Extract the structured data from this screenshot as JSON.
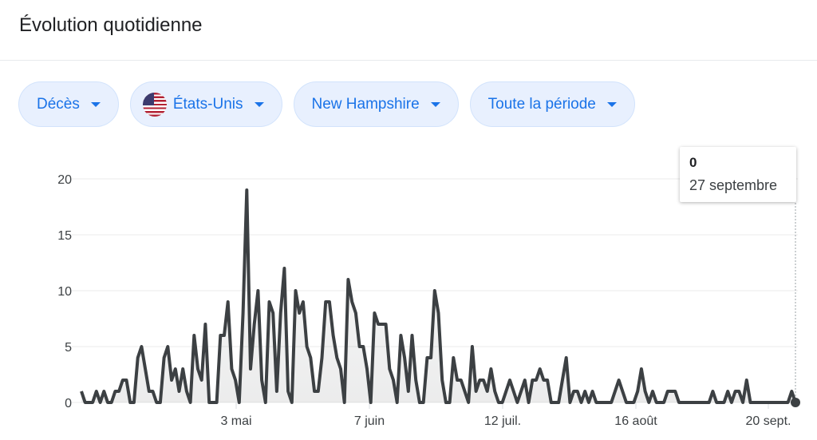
{
  "header": {
    "title": "Évolution quotidienne"
  },
  "filters": [
    {
      "label": "Décès",
      "icon": "caret-down-icon"
    },
    {
      "label": "États-Unis",
      "icon": "us-flag-icon"
    },
    {
      "label": "New Hampshire",
      "icon": "caret-down-icon"
    },
    {
      "label": "Toute la période",
      "icon": "caret-down-icon"
    }
  ],
  "tooltip": {
    "value": "0",
    "date": "27 septembre"
  },
  "chart_data": {
    "type": "line",
    "title": "",
    "xlabel": "",
    "ylabel": "",
    "ylim": [
      0,
      20
    ],
    "yticks": [
      0,
      5,
      10,
      15,
      20
    ],
    "xticks": [
      "3 mai",
      "7 juin",
      "12 juil.",
      "16 août",
      "20 sept."
    ],
    "grid": true,
    "line_color": "#3c4043",
    "values": [
      1,
      0,
      0,
      0,
      1,
      0,
      1,
      0,
      0,
      1,
      1,
      2,
      2,
      0,
      0,
      4,
      5,
      3,
      1,
      1,
      0,
      0,
      4,
      5,
      2,
      3,
      1,
      3,
      1,
      0,
      6,
      3,
      2,
      7,
      0,
      0,
      0,
      6,
      6,
      9,
      3,
      2,
      0,
      8,
      19,
      3,
      7,
      10,
      2,
      0,
      9,
      8,
      1,
      8,
      12,
      1,
      0,
      10,
      8,
      9,
      5,
      4,
      1,
      1,
      4,
      9,
      9,
      6,
      4,
      3,
      0,
      11,
      9,
      8,
      5,
      5,
      3,
      0,
      8,
      7,
      7,
      7,
      3,
      2,
      0,
      6,
      4,
      1,
      6,
      2,
      0,
      0,
      4,
      4,
      10,
      8,
      2,
      0,
      0,
      4,
      2,
      2,
      1,
      0,
      5,
      1,
      2,
      2,
      1,
      3,
      1,
      0,
      0,
      1,
      2,
      1,
      0,
      1,
      2,
      0,
      2,
      2,
      3,
      2,
      2,
      0,
      0,
      0,
      2,
      4,
      0,
      1,
      1,
      0,
      1,
      0,
      1,
      0,
      0,
      0,
      0,
      0,
      1,
      2,
      1,
      0,
      0,
      0,
      1,
      3,
      1,
      0,
      1,
      0,
      0,
      0,
      1,
      1,
      1,
      0,
      0,
      0,
      0,
      0,
      0,
      0,
      0,
      0,
      1,
      0,
      0,
      0,
      1,
      0,
      1,
      1,
      0,
      2,
      0,
      0,
      0,
      0,
      0,
      0,
      0,
      0,
      0,
      0,
      0,
      1,
      0
    ]
  }
}
